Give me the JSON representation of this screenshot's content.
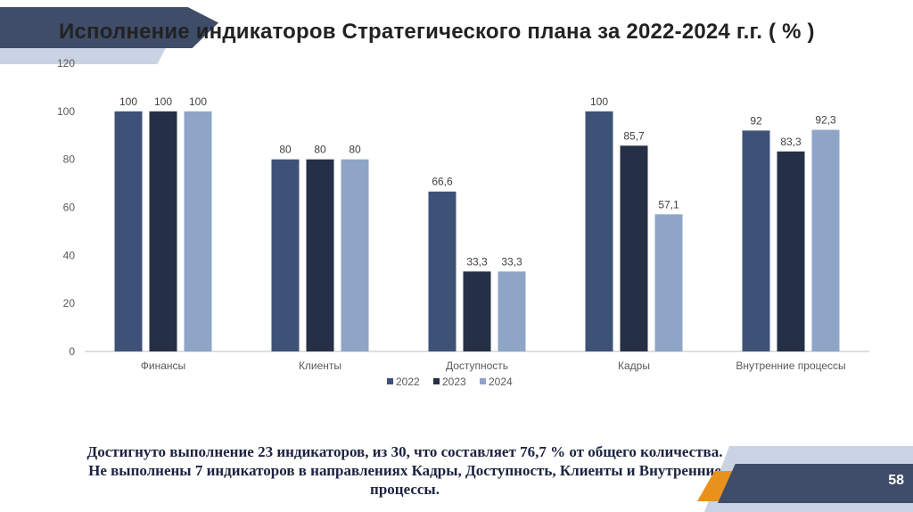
{
  "title": "Исполнение индикаторов Стратегического плана за 2022-2024 г.г. ( % )",
  "page_number": "58",
  "summary": {
    "line1": "Достигнуто выполнение 23 индикаторов, из 30, что составляет 76,7 % от общего количества.",
    "line2": "Не выполнены 7 индикаторов в направлениях Кадры, Доступность, Клиенты и Внутренние\nпроцессы."
  },
  "colors": {
    "header_dark": "#3f4d69",
    "header_light": "#c9d3e3",
    "accent_orange": "#e8921c"
  },
  "chart_data": {
    "type": "bar",
    "categories": [
      "Финансы",
      "Клиенты",
      "Доступность",
      "Кадры",
      "Внутренние процессы"
    ],
    "series": [
      {
        "name": "2022",
        "color": "#3e5278",
        "values": [
          100,
          80,
          66.6,
          100,
          92
        ],
        "labels": [
          "100",
          "80",
          "66,6",
          "100",
          "92"
        ]
      },
      {
        "name": "2023",
        "color": "#253047",
        "values": [
          100,
          80,
          33.3,
          85.7,
          83.3
        ],
        "labels": [
          "100",
          "80",
          "33,3",
          "85,7",
          "83,3"
        ]
      },
      {
        "name": "2024",
        "color": "#8ea5c8",
        "values": [
          100,
          80,
          33.3,
          57.1,
          92.3
        ],
        "labels": [
          "100",
          "80",
          "33,3",
          "57,1",
          "92,3"
        ]
      }
    ],
    "yticks": [
      0,
      20,
      40,
      60,
      80,
      100,
      120
    ],
    "ylim": [
      0,
      120
    ],
    "grid": false,
    "legend": "bottom"
  }
}
